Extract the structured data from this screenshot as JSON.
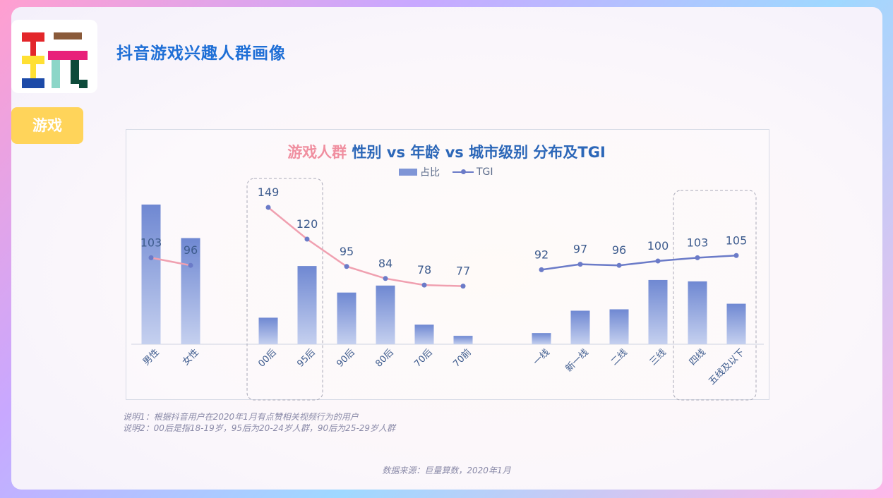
{
  "page": {
    "title": "抖音游戏兴趣人群画像",
    "tag": "游戏",
    "notes": [
      "说明1：根据抖音用户在2020年1月有点赞相关视频行为的用户",
      "说明2：00后是指18-19岁，95后为20-24岁人群，90后为25-29岁人群"
    ],
    "source": "数据来源：巨量算数，2020年1月"
  },
  "colors": {
    "bar": "#7f95d6",
    "tgi_pink": "#f0a0b0",
    "tgi_blue": "#6b7bc8",
    "title_blue": "#1f6fd6"
  },
  "chart_data": {
    "type": "bar",
    "title_highlight": "游戏人群",
    "title_rest": " 性别 vs 年龄 vs 城市级别 分布及TGI",
    "legend": {
      "bar": "占比",
      "line": "TGI"
    },
    "groups": [
      {
        "name": "gender",
        "categories": [
          "男性",
          "女性"
        ],
        "share": [
          1.0,
          0.76
        ],
        "tgi": [
          103,
          96
        ]
      },
      {
        "name": "age",
        "categories": [
          "00后",
          "95后",
          "90后",
          "80后",
          "70后",
          "70前"
        ],
        "share": [
          0.19,
          0.56,
          0.37,
          0.42,
          0.14,
          0.06
        ],
        "tgi": [
          149,
          120,
          95,
          84,
          78,
          77
        ]
      },
      {
        "name": "city",
        "categories": [
          "一线",
          "新一线",
          "二线",
          "三线",
          "四线",
          "五线及以下"
        ],
        "share": [
          0.08,
          0.24,
          0.25,
          0.46,
          0.45,
          0.29
        ],
        "tgi": [
          92,
          97,
          96,
          100,
          103,
          105
        ]
      }
    ]
  }
}
